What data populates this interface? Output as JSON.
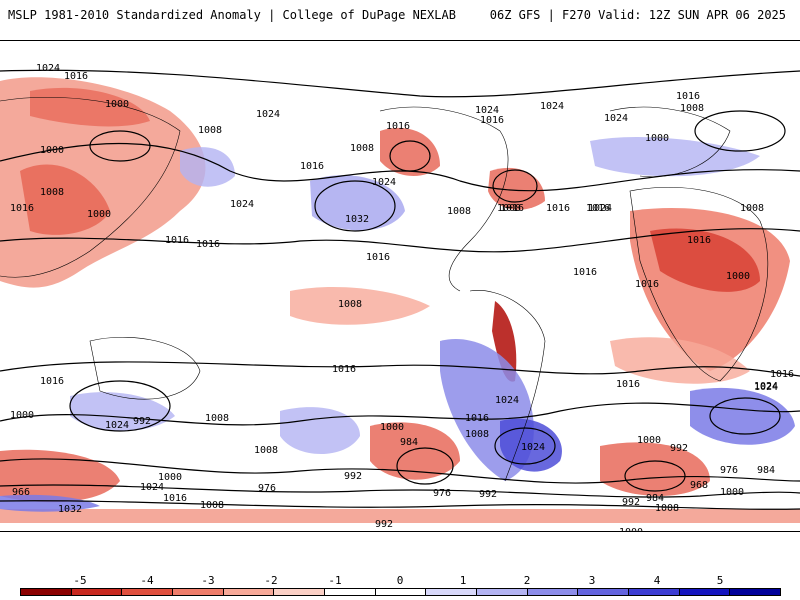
{
  "header": {
    "title_left": "MSLP 1981-2010 Standardized Anomaly | College of DuPage NEXLAB",
    "title_right": "06Z GFS | F270 Valid: 12Z SUN APR 06 2025"
  },
  "map": {
    "projection": "global-equirectangular",
    "land_outline_color": "#000000",
    "positive_anomaly_colors": [
      "#fcc5b8",
      "#f29a8a",
      "#e86a5a",
      "#d73c2f",
      "#b51a15"
    ],
    "negative_anomaly_colors": [
      "#d6d6f8",
      "#a9a9f0",
      "#7a7ae6",
      "#4d4dd8",
      "#2222c4"
    ],
    "contour_labels": [
      "1024",
      "1016",
      "1000",
      "1008",
      "1000",
      "1008",
      "1016",
      "1000",
      "1016",
      "1024",
      "1016",
      "1024",
      "1016",
      "1008",
      "1016",
      "1032",
      "1024",
      "1016",
      "1008",
      "1024",
      "1016",
      "1008",
      "1016",
      "1024",
      "1000",
      "1024",
      "1016",
      "1008",
      "1016",
      "1016",
      "1024",
      "1008",
      "1016",
      "1016",
      "1008",
      "1000",
      "1016",
      "1024",
      "1016",
      "1016",
      "1024",
      "1024",
      "1016",
      "1000",
      "1008",
      "984",
      "992",
      "976",
      "1000",
      "1024",
      "1016",
      "1008",
      "992",
      "976",
      "992",
      "984",
      "968",
      "976",
      "1000",
      "1008",
      "992",
      "984",
      "1000",
      "966",
      "1032",
      "1000",
      "1008",
      "1024",
      "992",
      "1016",
      "1016",
      "1024",
      "1000",
      "1008",
      "992"
    ]
  },
  "colorbar": {
    "ticks": [
      "-5",
      "-4",
      "-3",
      "-2",
      "-1",
      "0",
      "1",
      "2",
      "3",
      "4",
      "5"
    ],
    "segment_colors": [
      "#8b0000",
      "#c8281f",
      "#e0503f",
      "#ef7d6b",
      "#f7a999",
      "#fbd0c6",
      "#ffffff",
      "#ffffff",
      "#d8d8fa",
      "#b3b3f2",
      "#8c8ce9",
      "#6464df",
      "#3d3dd3",
      "#1414bf",
      "#00009a"
    ]
  }
}
